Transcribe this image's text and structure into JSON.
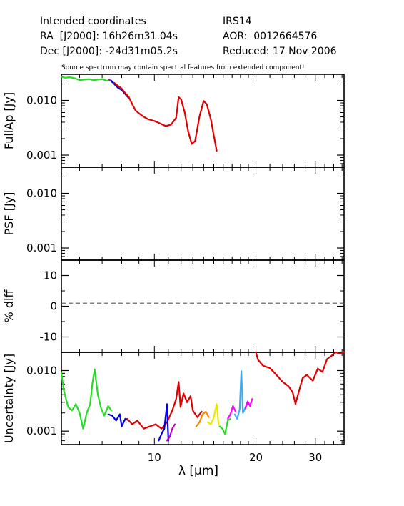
{
  "header": {
    "left": [
      "Intended coordinates",
      "RA  [J2000]: 16h26m31.04s",
      "Dec [J2000]: -24d31m05.2s"
    ],
    "right": [
      "IRS14",
      "AOR:  0012664576",
      "Reduced: 17 Nov 2006"
    ],
    "warning": "Source spectrum may contain spectral features from extended component!"
  },
  "chart_data": {
    "type": "line",
    "x_axis": {
      "label": "λ [μm]",
      "scale": "log",
      "range": [
        5.3,
        36.5
      ],
      "ticks": [
        10,
        20,
        30
      ],
      "tick_labels": [
        "10",
        "20",
        "30"
      ]
    },
    "panels": [
      {
        "ylabel": "FullAp [Jy]",
        "yscale": "log",
        "ylim": [
          0.0006,
          0.03
        ],
        "ticks": [
          0.01,
          0.001
        ],
        "tick_labels": [
          "0.010",
          "0.001"
        ],
        "series": [
          {
            "color": "#22dd22",
            "points": [
              [
                5.3,
                0.027
              ],
              [
                5.45,
                0.026
              ],
              [
                5.6,
                0.0265
              ],
              [
                5.8,
                0.0255
              ],
              [
                6.0,
                0.0235
              ],
              [
                6.2,
                0.024
              ],
              [
                6.4,
                0.0245
              ],
              [
                6.6,
                0.0235
              ],
              [
                6.8,
                0.024
              ],
              [
                7.0,
                0.0245
              ],
              [
                7.2,
                0.023
              ],
              [
                7.4,
                0.023
              ]
            ]
          },
          {
            "color": "#c000c0",
            "points": [
              [
                7.35,
                0.024
              ],
              [
                7.5,
                0.0215
              ],
              [
                7.7,
                0.0195
              ]
            ]
          },
          {
            "color": "#0000dd",
            "points": [
              [
                7.45,
                0.023
              ],
              [
                7.6,
                0.02
              ],
              [
                7.8,
                0.017
              ],
              [
                8.0,
                0.0155
              ],
              [
                8.2,
                0.013
              ],
              [
                8.4,
                0.011
              ]
            ]
          },
          {
            "color": "#e00000",
            "points": [
              [
                7.6,
                0.021
              ],
              [
                7.8,
                0.0185
              ],
              [
                8.0,
                0.0165
              ],
              [
                8.2,
                0.0135
              ],
              [
                8.4,
                0.0115
              ],
              [
                8.6,
                0.0085
              ],
              [
                8.8,
                0.0065
              ],
              [
                9.0,
                0.0058
              ],
              [
                9.3,
                0.005
              ],
              [
                9.6,
                0.0045
              ],
              [
                10.0,
                0.0042
              ],
              [
                10.4,
                0.0038
              ],
              [
                10.8,
                0.0034
              ],
              [
                11.2,
                0.0036
              ],
              [
                11.6,
                0.0048
              ],
              [
                11.8,
                0.0115
              ],
              [
                12.0,
                0.0105
              ],
              [
                12.3,
                0.006
              ],
              [
                12.6,
                0.0027
              ],
              [
                12.9,
                0.0016
              ],
              [
                13.2,
                0.0018
              ],
              [
                13.6,
                0.005
              ],
              [
                14.0,
                0.0098
              ],
              [
                14.3,
                0.0085
              ],
              [
                14.7,
                0.0045
              ],
              [
                15.0,
                0.0023
              ],
              [
                15.3,
                0.0012
              ]
            ]
          }
        ]
      },
      {
        "ylabel": "PSF [Jy]",
        "yscale": "log",
        "ylim": [
          0.0006,
          0.03
        ],
        "ticks": [
          0.01,
          0.001
        ],
        "tick_labels": [
          "0.010",
          "0.001"
        ],
        "series": []
      },
      {
        "ylabel": "% diff",
        "yscale": "linear",
        "ylim": [
          -15,
          15
        ],
        "ticks": [
          10,
          0,
          -10
        ],
        "tick_labels": [
          "10",
          "0",
          "-10"
        ],
        "reference_line": 1,
        "series": []
      },
      {
        "ylabel": "Uncertainty [Jy]",
        "yscale": "log",
        "ylim": [
          0.0006,
          0.02
        ],
        "ticks": [
          0.01,
          0.001
        ],
        "tick_labels": [
          "0.010",
          "0.001"
        ],
        "series": [
          {
            "color": "#22dd22",
            "points": [
              [
                5.3,
                0.009
              ],
              [
                5.4,
                0.0045
              ],
              [
                5.55,
                0.0025
              ],
              [
                5.7,
                0.0022
              ],
              [
                5.85,
                0.0028
              ],
              [
                6.0,
                0.002
              ],
              [
                6.15,
                0.0011
              ],
              [
                6.3,
                0.002
              ],
              [
                6.45,
                0.0028
              ],
              [
                6.55,
                0.0062
              ],
              [
                6.65,
                0.0105
              ],
              [
                6.8,
                0.004
              ],
              [
                6.95,
                0.0024
              ],
              [
                7.1,
                0.0018
              ],
              [
                7.3,
                0.0026
              ],
              [
                7.45,
                0.0022
              ]
            ]
          },
          {
            "color": "#0000dd",
            "points": [
              [
                7.3,
                0.0019
              ],
              [
                7.5,
                0.0018
              ],
              [
                7.7,
                0.0015
              ],
              [
                7.9,
                0.0019
              ],
              [
                8.0,
                0.0012
              ],
              [
                8.2,
                0.0016
              ],
              [
                8.4,
                0.0015
              ]
            ]
          },
          {
            "color": "#e00000",
            "points": [
              [
                8.3,
                0.0016
              ],
              [
                8.6,
                0.0013
              ],
              [
                8.9,
                0.0015
              ],
              [
                9.3,
                0.0011
              ],
              [
                9.7,
                0.0012
              ],
              [
                10.1,
                0.0013
              ],
              [
                10.5,
                0.0011
              ],
              [
                10.9,
                0.0014
              ],
              [
                11.3,
                0.0022
              ],
              [
                11.6,
                0.0034
              ],
              [
                11.8,
                0.0065
              ],
              [
                11.95,
                0.0025
              ],
              [
                12.2,
                0.0042
              ],
              [
                12.5,
                0.003
              ],
              [
                12.8,
                0.0038
              ],
              [
                13.0,
                0.0022
              ],
              [
                13.4,
                0.0017
              ],
              [
                13.8,
                0.0021
              ]
            ]
          },
          {
            "color": "#0000dd",
            "points": [
              [
                10.3,
                0.0007
              ],
              [
                10.5,
                0.0009
              ],
              [
                10.7,
                0.0011
              ],
              [
                10.9,
                0.0028
              ],
              [
                11.0,
                0.0007
              ]
            ]
          },
          {
            "color": "#c000c0",
            "points": [
              [
                10.9,
                0.0007
              ],
              [
                11.1,
                0.0008
              ],
              [
                11.3,
                0.0011
              ],
              [
                11.5,
                0.0013
              ]
            ]
          },
          {
            "color": "#ff8800",
            "points": [
              [
                13.3,
                0.0012
              ],
              [
                13.6,
                0.0014
              ],
              [
                13.9,
                0.0019
              ],
              [
                14.2,
                0.0021
              ],
              [
                14.5,
                0.0017
              ]
            ]
          },
          {
            "color": "#e8e800",
            "points": [
              [
                14.4,
                0.0014
              ],
              [
                14.7,
                0.0013
              ],
              [
                15.0,
                0.0017
              ],
              [
                15.3,
                0.0028
              ],
              [
                15.5,
                0.0013
              ]
            ]
          },
          {
            "color": "#22dd22",
            "points": [
              [
                15.6,
                0.0012
              ],
              [
                15.9,
                0.0011
              ],
              [
                16.2,
                0.0009
              ],
              [
                16.5,
                0.0015
              ],
              [
                16.8,
                0.0016
              ]
            ]
          },
          {
            "color": "#ff00ff",
            "points": [
              [
                16.5,
                0.0016
              ],
              [
                16.8,
                0.0019
              ],
              [
                17.1,
                0.0026
              ],
              [
                17.4,
                0.0021
              ]
            ]
          },
          {
            "color": "#44aaee",
            "points": [
              [
                17.3,
                0.0019
              ],
              [
                17.6,
                0.0016
              ],
              [
                17.9,
                0.0023
              ],
              [
                18.1,
                0.0098
              ],
              [
                18.3,
                0.002
              ],
              [
                18.6,
                0.0024
              ],
              [
                18.9,
                0.0028
              ]
            ]
          },
          {
            "color": "#ff00ff",
            "points": [
              [
                18.6,
                0.0024
              ],
              [
                18.9,
                0.0031
              ],
              [
                19.2,
                0.0026
              ],
              [
                19.5,
                0.0034
              ]
            ]
          },
          {
            "color": "#e00000",
            "points": [
              [
                20.0,
                0.02
              ],
              [
                20.3,
                0.015
              ],
              [
                21.0,
                0.012
              ],
              [
                22.0,
                0.011
              ],
              [
                23.0,
                0.0085
              ],
              [
                24.0,
                0.0065
              ],
              [
                25.0,
                0.0055
              ],
              [
                25.7,
                0.0044
              ],
              [
                26.2,
                0.0028
              ],
              [
                26.8,
                0.0045
              ],
              [
                27.5,
                0.0075
              ],
              [
                28.3,
                0.0085
              ],
              [
                29.5,
                0.0068
              ],
              [
                30.5,
                0.0108
              ],
              [
                31.5,
                0.0095
              ],
              [
                32.5,
                0.0155
              ],
              [
                33.5,
                0.0175
              ],
              [
                34.5,
                0.021
              ],
              [
                35.5,
                0.019
              ],
              [
                36.5,
                0.022
              ]
            ]
          }
        ]
      }
    ]
  }
}
